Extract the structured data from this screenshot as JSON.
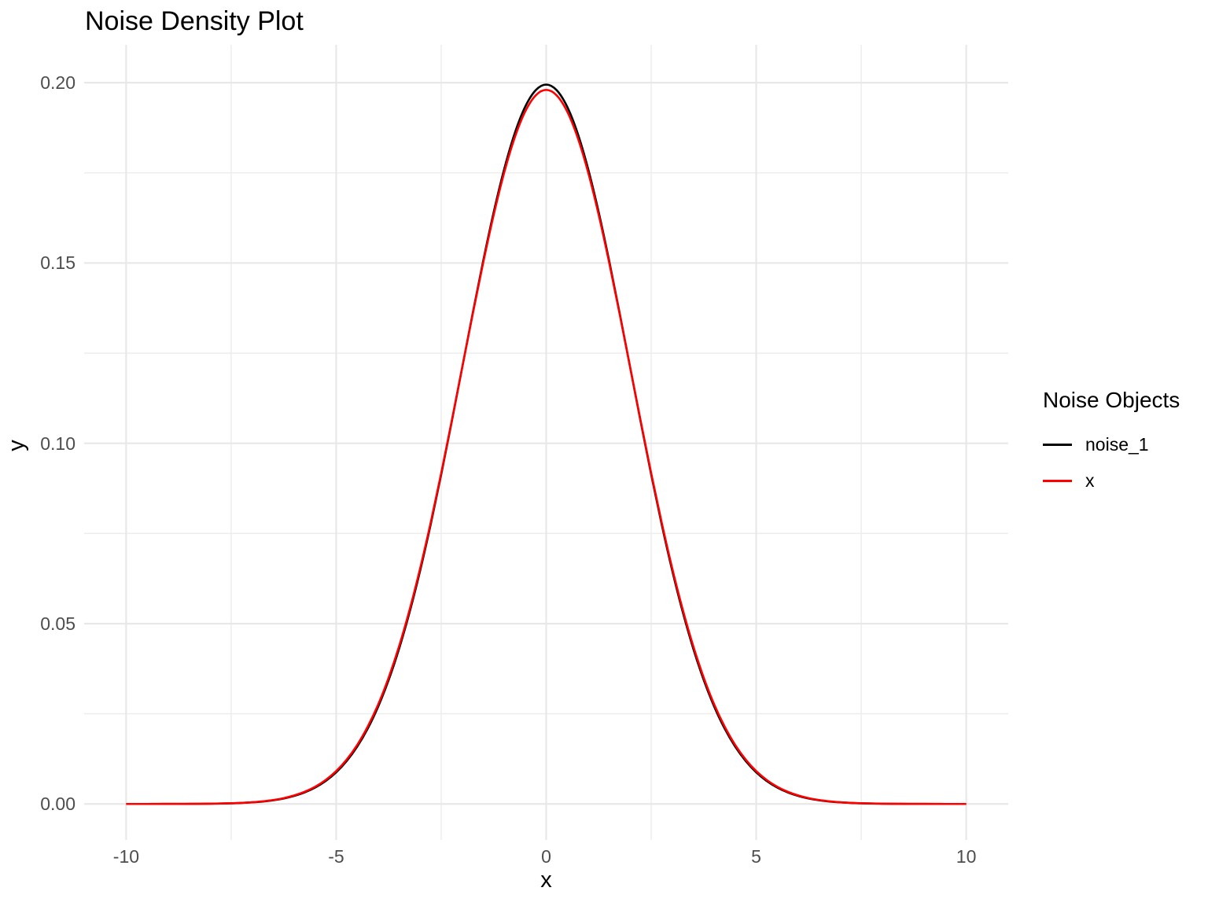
{
  "chart_data": {
    "type": "line",
    "title": "Noise Density Plot",
    "xlabel": "x",
    "ylabel": "y",
    "legend_title": "Noise Objects",
    "legend_position": "right",
    "background_color": "#FFFFFF",
    "grid": {
      "visible": true,
      "major_color": "#E8E8E8",
      "minor_color": "#ECECEC"
    },
    "axis_text_color": "#4D4D4D",
    "xlim": [
      -11,
      11
    ],
    "ylim": [
      -0.00998,
      0.2105
    ],
    "x_ticks": {
      "values": [
        -10,
        -5,
        0,
        5,
        10
      ],
      "labels": [
        "-10",
        "-5",
        "0",
        "5",
        "10"
      ]
    },
    "y_ticks": {
      "values": [
        0,
        0.05,
        0.1,
        0.15,
        0.2
      ],
      "labels": [
        "0.00",
        "0.05",
        "0.10",
        "0.15",
        "0.20"
      ]
    },
    "x_minor_gridlines": [
      -7.5,
      -2.5,
      2.5,
      7.5
    ],
    "y_minor_gridlines": [
      0.025,
      0.075,
      0.125,
      0.175
    ],
    "x": [
      -10,
      -9.75,
      -9.5,
      -9.25,
      -9,
      -8.75,
      -8.5,
      -8.25,
      -8,
      -7.75,
      -7.5,
      -7.25,
      -7,
      -6.75,
      -6.5,
      -6.25,
      -6,
      -5.75,
      -5.5,
      -5.25,
      -5,
      -4.75,
      -4.5,
      -4.25,
      -4,
      -3.75,
      -3.5,
      -3.25,
      -3,
      -2.75,
      -2.5,
      -2.25,
      -2,
      -1.75,
      -1.5,
      -1.25,
      -1,
      -0.75,
      -0.5,
      -0.25,
      0,
      0.25,
      0.5,
      0.75,
      1,
      1.25,
      1.5,
      1.75,
      2,
      2.25,
      2.5,
      2.75,
      3,
      3.25,
      3.5,
      3.75,
      4,
      4.25,
      4.5,
      4.75,
      5,
      5.25,
      5.5,
      5.75,
      6,
      6.25,
      6.5,
      6.75,
      7,
      7.25,
      7.5,
      7.75,
      8,
      8.25,
      8.5,
      8.75,
      9,
      9.25,
      9.5,
      9.75,
      10
    ],
    "series": [
      {
        "name": "noise_1",
        "color": "#000000",
        "values": [
          0,
          0,
          0,
          0,
          1e-05,
          1e-05,
          2e-05,
          4e-05,
          7e-05,
          0.00011,
          0.00018,
          0.00028,
          0.00044,
          0.00067,
          0.00102,
          0.00151,
          0.00222,
          0.0032,
          0.00455,
          0.00636,
          0.00876,
          0.01189,
          0.01587,
          0.02086,
          0.027,
          0.03439,
          0.04313,
          0.05327,
          0.06476,
          0.0775,
          0.09132,
          0.10594,
          0.12099,
          0.13602,
          0.15057,
          0.16408,
          0.17603,
          0.18593,
          0.19333,
          0.19792,
          0.19947,
          0.19792,
          0.19333,
          0.18593,
          0.17603,
          0.16408,
          0.15057,
          0.13602,
          0.12099,
          0.10594,
          0.09132,
          0.0775,
          0.06476,
          0.05327,
          0.04313,
          0.03439,
          0.027,
          0.02086,
          0.01587,
          0.01189,
          0.00876,
          0.00636,
          0.00455,
          0.0032,
          0.00222,
          0.00151,
          0.00102,
          0.00067,
          0.00044,
          0.00028,
          0.00018,
          0.00011,
          7e-05,
          4e-05,
          2e-05,
          1e-05,
          1e-05,
          0,
          0,
          0,
          0
        ]
      },
      {
        "name": "x",
        "color": "#FF0000",
        "values": [
          0,
          0,
          0,
          1e-05,
          1e-05,
          2e-05,
          3e-05,
          5e-05,
          8e-05,
          0.00012,
          0.0002,
          0.00031,
          0.00048,
          0.00073,
          0.00109,
          0.00161,
          0.00236,
          0.00338,
          0.00477,
          0.00665,
          0.00911,
          0.01231,
          0.01635,
          0.02142,
          0.02758,
          0.03505,
          0.0438,
          0.05392,
          0.06536,
          0.07801,
          0.09171,
          0.10615,
          0.121,
          0.13579,
          0.15008,
          0.16335,
          0.17507,
          0.18475,
          0.192,
          0.19648,
          0.198,
          0.19648,
          0.192,
          0.18475,
          0.17507,
          0.16335,
          0.15008,
          0.13579,
          0.121,
          0.10615,
          0.09171,
          0.07801,
          0.06536,
          0.05392,
          0.0438,
          0.03505,
          0.02758,
          0.02142,
          0.01635,
          0.01231,
          0.00911,
          0.00665,
          0.00477,
          0.00338,
          0.00236,
          0.00161,
          0.00109,
          0.00073,
          0.00048,
          0.00031,
          0.0002,
          0.00012,
          8e-05,
          5e-05,
          3e-05,
          2e-05,
          1e-05,
          1e-05,
          0,
          0,
          0
        ]
      }
    ]
  }
}
